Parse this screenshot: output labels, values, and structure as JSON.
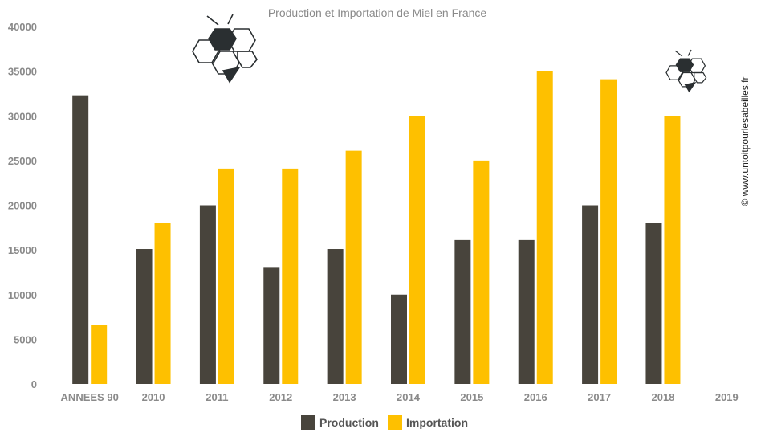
{
  "chart_data": {
    "type": "bar",
    "title": "Production et  Importation de Miel en France",
    "xlabel": "",
    "ylabel": "",
    "categories": [
      "ANNEES 90",
      "2010",
      "2011",
      "2012",
      "2013",
      "2014",
      "2015",
      "2016",
      "2017",
      "2018",
      "2019"
    ],
    "series": [
      {
        "name": "Production",
        "color": "#48443c",
        "values": [
          32300,
          15100,
          20000,
          13000,
          15100,
          10000,
          16100,
          16100,
          20000,
          18000,
          null
        ]
      },
      {
        "name": "Importation",
        "color": "#fec000",
        "values": [
          6600,
          18000,
          24100,
          24100,
          26100,
          30000,
          25000,
          35000,
          34100,
          30000,
          null
        ]
      }
    ],
    "ylim": [
      0,
      40000
    ],
    "yticks": [
      0,
      5000,
      10000,
      15000,
      20000,
      25000,
      30000,
      35000,
      40000
    ],
    "grid": false,
    "legend_position": "bottom-center"
  },
  "credit": "© www.untoitpourlesabeilles.fr",
  "decorations": [
    "bee-logo-icon",
    "bee-logo-icon"
  ]
}
